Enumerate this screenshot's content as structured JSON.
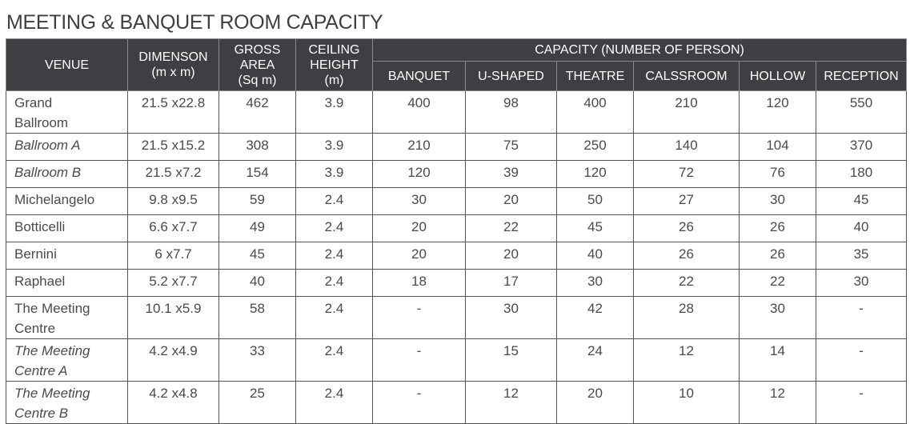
{
  "title": "MEETING & BANQUET ROOM CAPACITY",
  "headers": {
    "venue": "VENUE",
    "dimension_line1": "DIMENSON",
    "dimension_line2": "(m x m)",
    "gross_line1": "GROSS",
    "gross_line2": "AREA",
    "gross_line3": "(Sq m)",
    "ceiling_line1": "CEILING",
    "ceiling_line2": "HEIGHT",
    "ceiling_line3": "(m)",
    "capacity": "CAPACITY (NUMBER OF PERSON)",
    "banquet": "BANQUET",
    "ushaped": "U-SHAPED",
    "theatre": "THEATRE",
    "classroom": "CALSSROOM",
    "hollow": "HOLLOW",
    "reception": "RECEPTION"
  },
  "rows": [
    {
      "venue_line1": "Grand",
      "venue_line2": "Ballroom",
      "dimension": "21.5 x22.8",
      "gross": "462",
      "ceiling": "3.9",
      "banquet": "400",
      "ushaped": "98",
      "theatre": "400",
      "classroom": "210",
      "hollow": "120",
      "reception": "550"
    },
    {
      "venue_line1": "Ballroom A",
      "venue_line2": "",
      "dimension": "21.5 x15.2",
      "gross": "308",
      "ceiling": "3.9",
      "banquet": "210",
      "ushaped": "75",
      "theatre": "250",
      "classroom": "140",
      "hollow": "104",
      "reception": "370"
    },
    {
      "venue_line1": "Ballroom B",
      "venue_line2": "",
      "dimension": "21.5 x7.2",
      "gross": "154",
      "ceiling": "3.9",
      "banquet": "120",
      "ushaped": "39",
      "theatre": "120",
      "classroom": "72",
      "hollow": "76",
      "reception": "180"
    },
    {
      "venue_line1": "Michelangelo",
      "venue_line2": "",
      "dimension": "9.8 x9.5",
      "gross": "59",
      "ceiling": "2.4",
      "banquet": "30",
      "ushaped": "20",
      "theatre": "50",
      "classroom": "27",
      "hollow": "30",
      "reception": "45"
    },
    {
      "venue_line1": "Botticelli",
      "venue_line2": "",
      "dimension": "6.6 x7.7",
      "gross": "49",
      "ceiling": "2.4",
      "banquet": "20",
      "ushaped": "22",
      "theatre": "45",
      "classroom": "26",
      "hollow": "26",
      "reception": "40"
    },
    {
      "venue_line1": "Bernini",
      "venue_line2": "",
      "dimension": "6 x7.7",
      "gross": "45",
      "ceiling": "2.4",
      "banquet": "20",
      "ushaped": "20",
      "theatre": "40",
      "classroom": "26",
      "hollow": "26",
      "reception": "35"
    },
    {
      "venue_line1": "Raphael",
      "venue_line2": "",
      "dimension": "5.2 x7.7",
      "gross": "40",
      "ceiling": "2.4",
      "banquet": "18",
      "ushaped": "17",
      "theatre": "30",
      "classroom": "22",
      "hollow": "22",
      "reception": "30"
    },
    {
      "venue_line1": "The Meeting",
      "venue_line2": "Centre",
      "dimension": "10.1 x5.9",
      "gross": "58",
      "ceiling": "2.4",
      "banquet": "-",
      "ushaped": "30",
      "theatre": "42",
      "classroom": "28",
      "hollow": "30",
      "reception": "-"
    },
    {
      "venue_line1": "The Meeting",
      "venue_line2": "Centre A",
      "dimension": "4.2 x4.9",
      "gross": "33",
      "ceiling": "2.4",
      "banquet": "-",
      "ushaped": "15",
      "theatre": "24",
      "classroom": "12",
      "hollow": "14",
      "reception": "-"
    },
    {
      "venue_line1": "The Meeting",
      "venue_line2": "Centre B",
      "dimension": "4.2 x4.8",
      "gross": "25",
      "ceiling": "2.4",
      "banquet": "-",
      "ushaped": "12",
      "theatre": "20",
      "classroom": "10",
      "hollow": "12",
      "reception": "-"
    }
  ]
}
